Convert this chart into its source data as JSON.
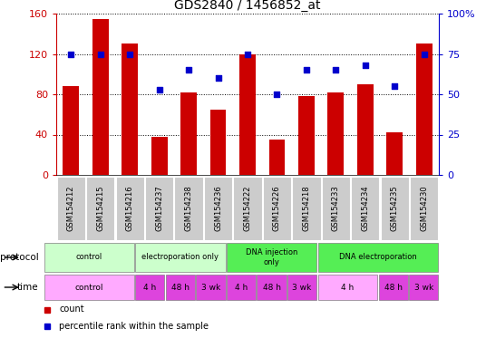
{
  "title": "GDS2840 / 1456852_at",
  "samples": [
    "GSM154212",
    "GSM154215",
    "GSM154216",
    "GSM154237",
    "GSM154238",
    "GSM154236",
    "GSM154222",
    "GSM154226",
    "GSM154218",
    "GSM154233",
    "GSM154234",
    "GSM154235",
    "GSM154230"
  ],
  "counts": [
    88,
    155,
    130,
    38,
    82,
    65,
    120,
    35,
    78,
    82,
    90,
    42,
    130
  ],
  "percentile_ranks": [
    75,
    75,
    75,
    53,
    65,
    60,
    75,
    50,
    65,
    65,
    68,
    55,
    75
  ],
  "ylim_left": [
    0,
    160
  ],
  "ylim_right": [
    0,
    100
  ],
  "yticks_left": [
    0,
    40,
    80,
    120,
    160
  ],
  "yticks_right": [
    0,
    25,
    50,
    75,
    100
  ],
  "ytick_right_labels": [
    "0",
    "25",
    "50",
    "75",
    "100%"
  ],
  "bar_color": "#cc0000",
  "dot_color": "#0000cc",
  "protocol_groups": [
    {
      "label": "control",
      "start": 0,
      "end": 3,
      "color": "#ccffcc"
    },
    {
      "label": "electroporation only",
      "start": 3,
      "end": 6,
      "color": "#ccffcc"
    },
    {
      "label": "DNA injection\nonly",
      "start": 6,
      "end": 9,
      "color": "#55ee55"
    },
    {
      "label": "DNA electroporation",
      "start": 9,
      "end": 13,
      "color": "#55ee55"
    }
  ],
  "time_groups": [
    {
      "label": "control",
      "start": 0,
      "end": 3,
      "color": "#ffaaff"
    },
    {
      "label": "4 h",
      "start": 3,
      "end": 4,
      "color": "#dd44dd"
    },
    {
      "label": "48 h",
      "start": 4,
      "end": 5,
      "color": "#dd44dd"
    },
    {
      "label": "3 wk",
      "start": 5,
      "end": 6,
      "color": "#dd44dd"
    },
    {
      "label": "4 h",
      "start": 6,
      "end": 7,
      "color": "#dd44dd"
    },
    {
      "label": "48 h",
      "start": 7,
      "end": 8,
      "color": "#dd44dd"
    },
    {
      "label": "3 wk",
      "start": 8,
      "end": 9,
      "color": "#dd44dd"
    },
    {
      "label": "4 h",
      "start": 9,
      "end": 11,
      "color": "#ffaaff"
    },
    {
      "label": "48 h",
      "start": 11,
      "end": 12,
      "color": "#dd44dd"
    },
    {
      "label": "3 wk",
      "start": 12,
      "end": 13,
      "color": "#dd44dd"
    }
  ],
  "tick_color_left": "#cc0000",
  "tick_color_right": "#0000cc",
  "sample_bg_color": "#cccccc",
  "label_protocol": "protocol",
  "label_time": "time",
  "legend_items": [
    {
      "label": "count",
      "color": "#cc0000"
    },
    {
      "label": "percentile rank within the sample",
      "color": "#0000cc"
    }
  ]
}
